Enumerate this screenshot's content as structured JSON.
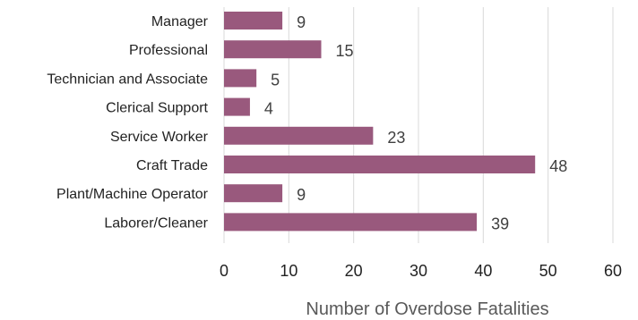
{
  "chart_data": {
    "type": "bar",
    "orientation": "horizontal",
    "categories": [
      "Manager",
      "Professional",
      "Technician and Associate",
      "Clerical Support",
      "Service Worker",
      "Craft Trade",
      "Plant/Machine Operator",
      "Laborer/Cleaner"
    ],
    "values": [
      9,
      15,
      5,
      4,
      23,
      48,
      9,
      39
    ],
    "title": "",
    "xlabel": "Number of Overdose Fatalities",
    "ylabel": "",
    "xlim": [
      0,
      60
    ],
    "xticks": [
      0,
      10,
      20,
      30,
      40,
      50,
      60
    ],
    "grid": "vertical",
    "data_labels": true,
    "bar_color": "#99597D",
    "grid_color": "#D9D9D9"
  }
}
